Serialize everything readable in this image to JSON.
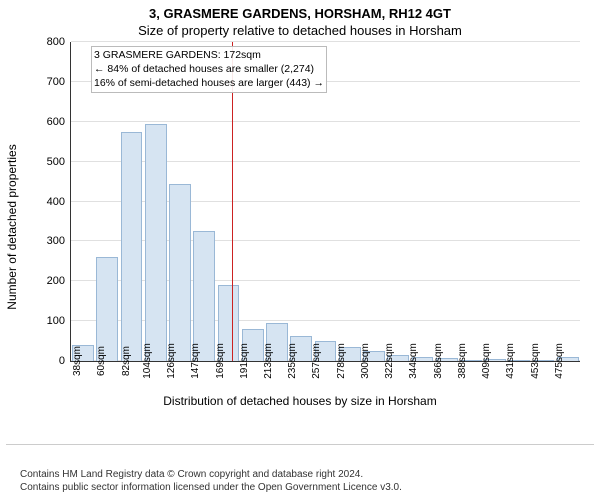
{
  "title": "3, GRASMERE GARDENS, HORSHAM, RH12 4GT",
  "subtitle": "Size of property relative to detached houses in Horsham",
  "ylabel": "Number of detached properties",
  "xlabel": "Distribution of detached houses by size in Horsham",
  "chart": {
    "type": "histogram",
    "background_color": "#ffffff",
    "grid_color": "#e0e0e0",
    "axis_color": "#333333",
    "bar_fill": "#d6e4f2",
    "bar_stroke": "#9ab8d6",
    "ylim": [
      0,
      800
    ],
    "ytick_step": 100,
    "categories": [
      "38sqm",
      "60sqm",
      "82sqm",
      "104sqm",
      "126sqm",
      "147sqm",
      "169sqm",
      "191sqm",
      "213sqm",
      "235sqm",
      "257sqm",
      "278sqm",
      "300sqm",
      "322sqm",
      "344sqm",
      "366sqm",
      "388sqm",
      "409sqm",
      "431sqm",
      "453sqm",
      "475sqm"
    ],
    "values": [
      40,
      260,
      575,
      595,
      445,
      325,
      190,
      80,
      95,
      62,
      50,
      35,
      24,
      14,
      10,
      8,
      2,
      4,
      2,
      2,
      9
    ],
    "reference_line": {
      "color": "#cc2222",
      "position_label": "172sqm"
    },
    "annotation": {
      "lines": [
        "3 GRASMERE GARDENS: 172sqm",
        "← 84% of detached houses are smaller (2,274)",
        "16% of semi-detached houses are larger (443) →"
      ],
      "border_color": "#bbbbbb",
      "fontsize": 10.5
    }
  },
  "footer": {
    "line1": "Contains HM Land Registry data © Crown copyright and database right 2024.",
    "line2": "Contains public sector information licensed under the Open Government Licence v3.0."
  }
}
